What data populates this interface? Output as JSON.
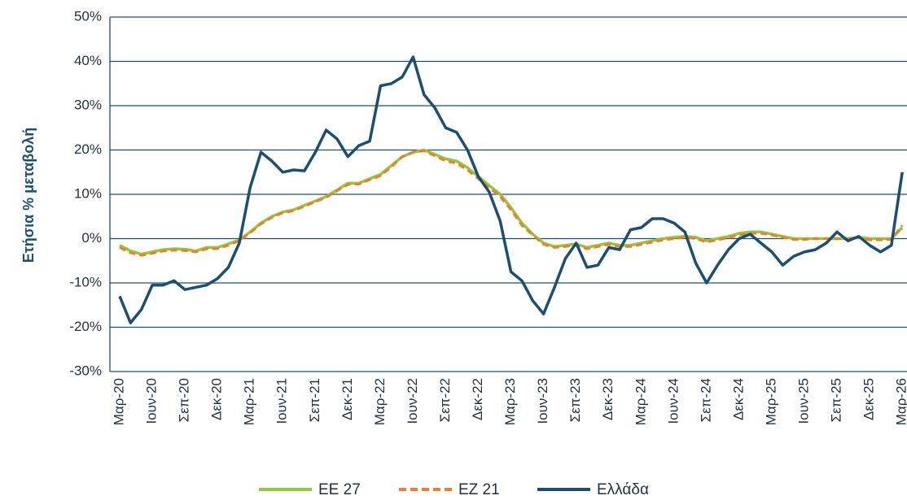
{
  "chart_data": {
    "type": "line",
    "y_label": "Ετήσια % μεταβολή",
    "categories": [
      "Μαρ-20",
      null,
      null,
      "Ιουν-20",
      null,
      null,
      "Σεπ-20",
      null,
      null,
      "Δεκ-20",
      null,
      null,
      "Μαρ-21",
      null,
      null,
      "Ιουν-21",
      null,
      null,
      "Σεπ-21",
      null,
      null,
      "Δεκ-21",
      null,
      null,
      "Μαρ-22",
      null,
      null,
      "Ιουν-22",
      null,
      null,
      "Σεπ-22",
      null,
      null,
      "Δεκ-22",
      null,
      null,
      "Μαρ-23",
      null,
      null,
      "Ιουν-23",
      null,
      null,
      "Σεπ-23",
      null,
      null,
      "Δεκ-23",
      null,
      null,
      "Μαρ-24",
      null,
      null,
      "Ιουν-24",
      null,
      null,
      "Σεπ-24",
      null,
      null,
      "Δεκ-24",
      null,
      null,
      "Μαρ-25",
      null,
      null,
      "Ιουν-25",
      null,
      null,
      "Σεπ-25",
      null,
      null,
      "Δεκ-25",
      null,
      null,
      "Μαρ-26"
    ],
    "series": [
      {
        "name": "ΕΕ 27",
        "color": "#92c83e",
        "dashed": false,
        "values": [
          -1.5,
          -2.8,
          -3.5,
          -3,
          -2.5,
          -2.3,
          -2.4,
          -2.8,
          -2,
          -2,
          -1.2,
          -0.3,
          1.5,
          3.5,
          5,
          6,
          6.5,
          7.5,
          8.5,
          9.5,
          11,
          12.5,
          12.5,
          13.5,
          14.5,
          16.5,
          18.5,
          19.5,
          20,
          19,
          18,
          17.5,
          16,
          14,
          12,
          10,
          7,
          3.5,
          1,
          -1,
          -1.8,
          -1.5,
          -1.2,
          -2,
          -1.5,
          -1,
          -1.5,
          -1.5,
          -1,
          -0.5,
          0,
          0.3,
          0.5,
          0.3,
          -0.5,
          0,
          0.5,
          1.2,
          1.5,
          1.5,
          1,
          0.5,
          0,
          0,
          0,
          0,
          0,
          0,
          0.3,
          0,
          0,
          0,
          2.5
        ]
      },
      {
        "name": "ΕΖ 21",
        "color": "#ed7d31",
        "dashed": true,
        "values": [
          -2,
          -3.2,
          -3.8,
          -3.3,
          -2.8,
          -2.6,
          -2.7,
          -3,
          -2.3,
          -2.3,
          -1.5,
          -0.5,
          1.3,
          3.3,
          4.8,
          5.8,
          6.3,
          7.3,
          8.3,
          9.3,
          10.8,
          12.2,
          12.3,
          13.3,
          14.2,
          16.2,
          18.5,
          19.5,
          19.8,
          18.7,
          17.5,
          17,
          15.5,
          13.5,
          11.5,
          9.5,
          6.5,
          3,
          0.8,
          -1.3,
          -2,
          -1.8,
          -1.5,
          -2.3,
          -1.8,
          -1.3,
          -1.8,
          -1.8,
          -1.3,
          -0.8,
          -0.3,
          0,
          0.3,
          0,
          -0.8,
          -0.3,
          0.2,
          0.8,
          1.2,
          1.2,
          0.8,
          0.3,
          -0.2,
          -0.2,
          0,
          0,
          0,
          0,
          0.2,
          -0.3,
          -0.3,
          -0.2,
          3
        ]
      },
      {
        "name": "Ελλάδα",
        "color": "#1b4f72",
        "dashed": false,
        "values": [
          -13,
          -19,
          -16,
          -10.5,
          -10.5,
          -9.5,
          -11.5,
          -11,
          -10.5,
          -9,
          -6.5,
          -1,
          11.5,
          19.5,
          17.5,
          15,
          15.5,
          15.3,
          19.5,
          24.5,
          22.5,
          18.5,
          21,
          22,
          34.5,
          35,
          36.5,
          41,
          32.5,
          29.5,
          25,
          24,
          20,
          14,
          10.5,
          4,
          -7.5,
          -9.5,
          -14,
          -17,
          -11,
          -4.5,
          -1,
          -6.5,
          -6,
          -2,
          -2.5,
          2,
          2.5,
          4.5,
          4.5,
          3.5,
          1.5,
          -5.5,
          -10,
          -6,
          -2.5,
          0,
          1,
          -1,
          -3,
          -6,
          -4,
          -3,
          -2.5,
          -1,
          1.5,
          -0.5,
          0.5,
          -1.5,
          -3,
          -1.5,
          15
        ]
      }
    ],
    "ylim": [
      -30,
      50
    ],
    "yticks": [
      {
        "value": -30,
        "label": "-30%"
      },
      {
        "value": -20,
        "label": "-20%"
      },
      {
        "value": -10,
        "label": "-10%"
      },
      {
        "value": 0,
        "label": "0%"
      },
      {
        "value": 10,
        "label": "10%"
      },
      {
        "value": 20,
        "label": "20%"
      },
      {
        "value": 30,
        "label": "30%"
      },
      {
        "value": 40,
        "label": "40%"
      },
      {
        "value": 50,
        "label": "50%"
      }
    ],
    "grid": true,
    "legend": "bottom"
  }
}
